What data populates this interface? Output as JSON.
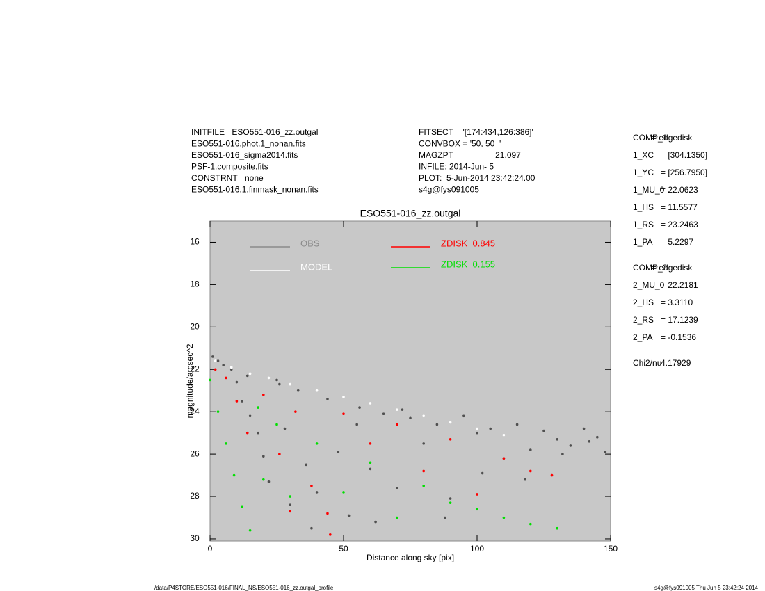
{
  "chart_data": {
    "type": "scatter",
    "title": "ESO551-016_zz.outgal",
    "x_label": "Distance along sky [pix]",
    "y_label": "magnitude/arcsec^2",
    "xlim": [
      0,
      150
    ],
    "ylim": [
      30.1,
      15.0
    ],
    "xticks": [
      0,
      50,
      100,
      150
    ],
    "yticks": [
      16,
      18,
      20,
      22,
      24,
      26,
      28,
      30
    ],
    "grid": false,
    "background": "#c8c8c8",
    "info_left": [
      "INITFILE= ESO551-016_zz.outgal",
      "ESO551-016.phot.1_nonan.fits",
      "ESO551-016_sigma2014.fits",
      "PSF-1.composite.fits",
      "CONSTRNT= none",
      "ESO551-016.1.finmask_nonan.fits"
    ],
    "info_middle": [
      "FITSECT = '[174:434,126:386]'",
      "CONVBOX = '50, 50  '",
      "MAGZPT =               21.097",
      "INFILE: 2014-Jun- 5",
      "PLOT:  5-Jun-2014 23:42:24.00",
      "s4g@fys091005"
    ],
    "params": [
      [
        [
          "COMP_1",
          "= edgedisk"
        ],
        [
          "1_XC",
          "= [304.1350]"
        ],
        [
          "1_YC",
          "= [256.7950]"
        ],
        [
          "1_MU_0",
          "= 22.0623"
        ],
        [
          "1_HS",
          "= 11.5577"
        ],
        [
          "1_RS",
          "= 23.2463"
        ],
        [
          "1_PA",
          "= 5.2297"
        ]
      ],
      [
        [
          "COMP_2",
          "= edgedisk"
        ],
        [
          "2_MU_0",
          "= 22.2181"
        ],
        [
          "2_HS",
          "= 3.3110"
        ],
        [
          "2_RS",
          "= 17.1239"
        ],
        [
          "2_PA",
          "= -0.1536"
        ]
      ],
      [
        [
          "Chi2/nu=",
          "4.17929"
        ]
      ]
    ],
    "footer_left": "/data/P4STORE/ESO551-016/FINAL_NS/ESO551-016_zz.outgal_profile",
    "footer_right": "s4g@fys091005  Thu Jun  5 23:42:24 2014",
    "series": [
      {
        "name": "OBS",
        "color": "#8a8a8a",
        "point_color": "#505050",
        "x": [
          1,
          3,
          5,
          8,
          10,
          12,
          15,
          18,
          20,
          22,
          25,
          28,
          30,
          33,
          36,
          40,
          44,
          48,
          52,
          56,
          60,
          65,
          70,
          75,
          80,
          85,
          90,
          95,
          100,
          105,
          110,
          115,
          120,
          125,
          130,
          135,
          140,
          145,
          148,
          62,
          72,
          88,
          102,
          118,
          132,
          142,
          14,
          26,
          38,
          55
        ],
        "values": [
          21.4,
          21.6,
          21.8,
          22.0,
          22.6,
          23.5,
          24.2,
          25.0,
          26.1,
          27.3,
          22.5,
          24.8,
          28.4,
          23.0,
          26.5,
          27.8,
          23.4,
          25.9,
          28.9,
          23.8,
          26.7,
          24.1,
          27.6,
          24.3,
          25.5,
          24.6,
          28.1,
          24.2,
          25.0,
          24.8,
          26.2,
          24.6,
          25.8,
          24.9,
          25.3,
          25.6,
          24.8,
          25.2,
          25.9,
          29.2,
          23.9,
          29.0,
          26.9,
          27.2,
          26.0,
          25.4,
          22.3,
          22.7,
          29.5,
          24.6
        ]
      },
      {
        "name": "MODEL",
        "color": "#ffffff",
        "point_color": "#ffffff",
        "x": [
          2,
          8,
          15,
          22,
          30,
          40,
          50,
          60,
          70,
          80,
          90,
          100,
          110
        ],
        "values": [
          21.6,
          21.9,
          22.2,
          22.4,
          22.7,
          23.0,
          23.3,
          23.6,
          23.9,
          24.2,
          24.5,
          24.8,
          25.1
        ]
      },
      {
        "name": "ZDISK  0.845",
        "color": "#ff0000",
        "point_color": "#ff0000",
        "x": [
          2,
          6,
          10,
          14,
          20,
          26,
          32,
          38,
          44,
          50,
          60,
          70,
          80,
          90,
          100,
          110,
          120,
          128,
          45,
          30
        ],
        "values": [
          22.0,
          22.4,
          23.5,
          25.0,
          23.2,
          26.0,
          24.0,
          27.5,
          28.8,
          24.1,
          25.5,
          24.6,
          26.8,
          25.3,
          27.9,
          26.2,
          26.8,
          27.0,
          29.8,
          28.7
        ]
      },
      {
        "name": "ZDISK  0.155",
        "color": "#00e000",
        "point_color": "#00e000",
        "x": [
          0,
          3,
          6,
          9,
          12,
          15,
          18,
          20,
          25,
          30,
          40,
          50,
          60,
          70,
          80,
          90,
          100,
          110,
          120,
          130
        ],
        "values": [
          22.5,
          24.0,
          25.5,
          27.0,
          28.5,
          29.6,
          23.8,
          27.2,
          24.6,
          28.0,
          25.5,
          27.8,
          26.4,
          29.0,
          27.5,
          28.3,
          28.6,
          29.0,
          29.3,
          29.5
        ]
      }
    ]
  }
}
